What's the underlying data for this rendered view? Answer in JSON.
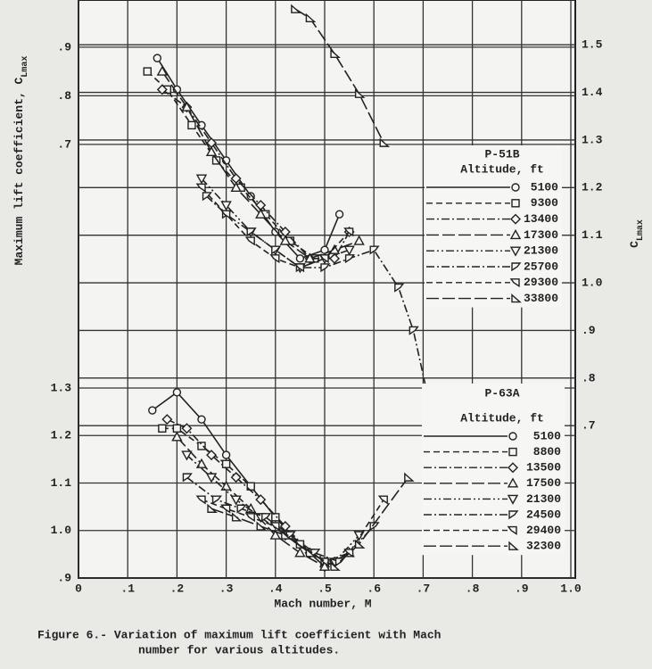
{
  "chart_data": {
    "type": "line",
    "ylabel": "Maximum lift coefficient, C",
    "ylabel_sub": "Lmax",
    "y2label": "C",
    "y2label_sub": "Lmax",
    "xlabel": "Mach number, M",
    "caption": [
      "Figure 6.- Variation of maximum lift coefficient with Mach",
      "number for various altitudes."
    ],
    "color": "#222222",
    "grid": true,
    "xlim": [
      0,
      1.0
    ],
    "xticks": [
      0,
      {
        "value": 0.1,
        "label": ".1"
      },
      {
        "value": 0.2,
        "label": ".2"
      },
      {
        "value": 0.3,
        "label": ".3"
      },
      {
        "value": 0.4,
        "label": ".4"
      },
      {
        "value": 0.5,
        "label": ".5"
      },
      {
        "value": 0.6,
        "label": ".6"
      },
      {
        "value": 0.7,
        "label": ".7"
      },
      {
        "value": 0.8,
        "label": ".8"
      },
      {
        "value": 0.9,
        "label": ".9"
      },
      {
        "value": 1.0,
        "label": "1.0"
      }
    ],
    "ylim": [
      0.9,
      2.117
    ],
    "yticks": [
      {
        "value": 0.9,
        "label": ".9"
      },
      {
        "value": 1.0,
        "label": "1.0"
      },
      1.1,
      1.2,
      1.3
    ],
    "ylim_upper": [
      -0.192,
      0.997
    ],
    "yticks_upper": [
      {
        "value": 0.7,
        "label": ".7"
      },
      {
        "value": 0.8,
        "label": ".8"
      },
      {
        "value": 0.9,
        "label": ".9"
      }
    ],
    "y2lim": [
      0.38,
      1.594
    ],
    "y2ticks": [
      1.5,
      1.4,
      1.3,
      1.2,
      1.1,
      {
        "value": 1.0,
        "label": "1.0"
      },
      {
        "value": 0.9,
        "label": ".9"
      },
      {
        "value": 0.8,
        "label": ".8"
      },
      {
        "value": 0.7,
        "label": ".7"
      }
    ],
    "groups": [
      {
        "title": "P-51B",
        "legend_title": "Altitude, ft",
        "axis": "y2",
        "series": [
          {
            "name": "5100",
            "marker": "circle",
            "dash": "solid",
            "x": [
              0.16,
              0.2,
              0.25,
              0.3,
              0.35,
              0.4,
              0.45,
              0.5,
              0.53
            ],
            "values": [
              1.472,
              1.406,
              1.331,
              1.257,
              1.182,
              1.107,
              1.051,
              1.069,
              1.144
            ]
          },
          {
            "name": "9300",
            "marker": "square",
            "dash": "dashed",
            "x": [
              0.14,
              0.18,
              0.23,
              0.28,
              0.33,
              0.38,
              0.43,
              0.48
            ],
            "values": [
              1.444,
              1.406,
              1.331,
              1.257,
              1.2,
              1.144,
              1.088,
              1.051
            ]
          },
          {
            "name": "13400",
            "marker": "diamond",
            "dash": "dash-dot",
            "x": [
              0.17,
              0.22,
              0.27,
              0.32,
              0.37,
              0.42,
              0.47,
              0.52,
              0.55
            ],
            "values": [
              1.406,
              1.369,
              1.294,
              1.219,
              1.163,
              1.107,
              1.051,
              1.051,
              1.107
            ]
          },
          {
            "name": "17300",
            "marker": "triangle",
            "dash": "long-dash",
            "x": [
              0.17,
              0.22,
              0.27,
              0.32,
              0.37,
              0.42,
              0.47,
              0.52,
              0.57
            ],
            "values": [
              1.444,
              1.369,
              1.275,
              1.2,
              1.144,
              1.088,
              1.051,
              1.069,
              1.088
            ]
          },
          {
            "name": "21300",
            "marker": "triangle-down",
            "dash": "dash-dot-dot",
            "x": [
              0.25,
              0.3,
              0.35,
              0.4,
              0.45,
              0.5,
              0.55
            ],
            "values": [
              1.219,
              1.163,
              1.107,
              1.069,
              1.032,
              1.051,
              1.069
            ]
          },
          {
            "name": "25700",
            "marker": "flag-right",
            "dash": "dash-dot",
            "x": [
              0.26,
              0.3,
              0.35,
              0.4,
              0.45,
              0.5,
              0.55,
              0.6,
              0.65,
              0.68,
              0.71
            ],
            "values": [
              1.182,
              1.144,
              1.107,
              1.069,
              1.032,
              1.032,
              1.051,
              1.069,
              0.99,
              0.9,
              0.76
            ]
          },
          {
            "name": "29300",
            "marker": "flag-left",
            "dash": "dashed",
            "x": [
              0.25,
              0.3,
              0.35,
              0.4,
              0.45,
              0.5,
              0.55
            ],
            "values": [
              1.2,
              1.144,
              1.088,
              1.051,
              1.032,
              1.051,
              1.107
            ]
          },
          {
            "name": "33800",
            "marker": "triangle-right",
            "dash": "long-dash",
            "x": [
              0.44,
              0.47,
              0.52,
              0.57,
              0.62
            ],
            "values": [
              1.575,
              1.556,
              1.481,
              1.397,
              1.294
            ]
          }
        ]
      },
      {
        "title": "P-63A",
        "legend_title": "Altitude, ft",
        "axis": "y",
        "series": [
          {
            "name": "5100",
            "marker": "circle",
            "dash": "solid",
            "x": [
              0.15,
              0.2,
              0.25,
              0.3,
              0.35,
              0.4,
              0.45,
              0.5
            ],
            "values": [
              1.253,
              1.291,
              1.234,
              1.159,
              1.093,
              1.028,
              0.971,
              0.924
            ]
          },
          {
            "name": "8800",
            "marker": "square",
            "dash": "dashed",
            "x": [
              0.17,
              0.2,
              0.25,
              0.3,
              0.35,
              0.4,
              0.45,
              0.5
            ],
            "values": [
              1.215,
              1.215,
              1.178,
              1.14,
              1.093,
              1.028,
              0.971,
              0.934
            ]
          },
          {
            "name": "13500",
            "marker": "diamond",
            "dash": "dash-dot",
            "x": [
              0.18,
              0.22,
              0.27,
              0.32,
              0.37,
              0.42,
              0.47,
              0.5,
              0.52
            ],
            "values": [
              1.234,
              1.215,
              1.159,
              1.112,
              1.065,
              1.009,
              0.953,
              0.924,
              0.934
            ]
          },
          {
            "name": "17500",
            "marker": "triangle",
            "dash": "long-dash",
            "x": [
              0.2,
              0.25,
              0.3,
              0.35,
              0.4,
              0.45,
              0.5,
              0.55
            ],
            "values": [
              1.197,
              1.14,
              1.093,
              1.046,
              0.99,
              0.953,
              0.924,
              0.953
            ]
          },
          {
            "name": "21300",
            "marker": "triangle-down",
            "dash": "dash-dot-dot",
            "x": [
              0.22,
              0.27,
              0.32,
              0.37,
              0.42,
              0.47,
              0.52,
              0.57
            ],
            "values": [
              1.159,
              1.112,
              1.065,
              1.028,
              0.99,
              0.953,
              0.934,
              0.99
            ]
          },
          {
            "name": "24500",
            "marker": "flag-right",
            "dash": "dash-dot",
            "x": [
              0.22,
              0.28,
              0.33,
              0.38,
              0.43,
              0.48,
              0.53,
              0.6
            ],
            "values": [
              1.112,
              1.065,
              1.046,
              1.028,
              0.99,
              0.953,
              0.934,
              1.009
            ]
          },
          {
            "name": "29400",
            "marker": "flag-left",
            "dash": "dashed",
            "x": [
              0.25,
              0.3,
              0.35,
              0.4,
              0.45,
              0.5,
              0.55,
              0.62
            ],
            "values": [
              1.065,
              1.046,
              1.028,
              1.009,
              0.971,
              0.934,
              0.953,
              1.065
            ]
          },
          {
            "name": "32300",
            "marker": "triangle-right",
            "dash": "long-dash",
            "x": [
              0.27,
              0.32,
              0.37,
              0.42,
              0.47,
              0.52,
              0.57,
              0.67
            ],
            "values": [
              1.046,
              1.028,
              1.009,
              0.99,
              0.953,
              0.924,
              0.971,
              1.112
            ]
          }
        ]
      }
    ]
  }
}
